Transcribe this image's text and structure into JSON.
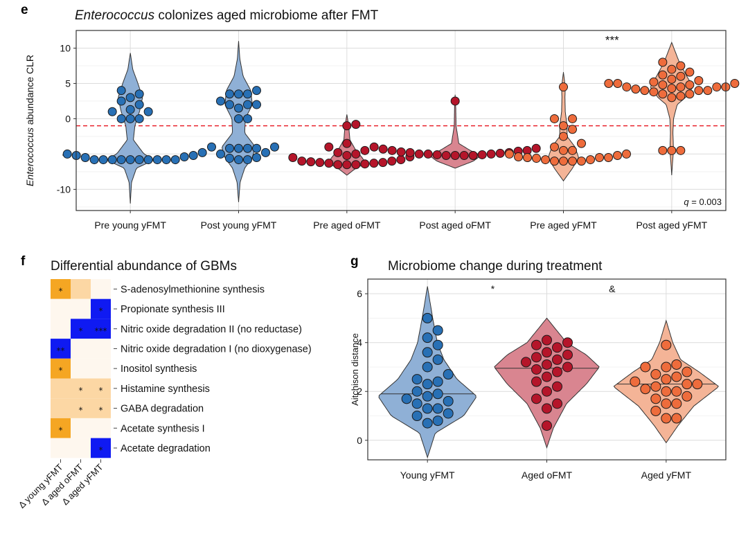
{
  "panels": {
    "e": {
      "letter": "e",
      "title_italic": "Enterococcus",
      "title_rest": " colonizes aged microbiome after FMT"
    },
    "f": {
      "letter": "f",
      "title": "Differential abundance of GBMs"
    },
    "g": {
      "letter": "g",
      "title": "Microbiome change during treatment"
    }
  },
  "chart_data": [
    {
      "id": "e",
      "type": "violin-beeswarm",
      "title": "Enterococcus colonizes aged microbiome after FMT",
      "ylabel_italic": "Enterococcus",
      "ylabel_rest": " abundance CLR",
      "ylim": [
        -13,
        12.5
      ],
      "yticks": [
        -10,
        -5,
        0,
        5,
        10
      ],
      "threshold": -1,
      "annotation": "***",
      "q_label": "q",
      "q_value": " = 0.003",
      "groups": [
        {
          "label": "Pre young yFMT",
          "color": "#2870b5",
          "fill": "#8fb0d6",
          "violin": [
            [
              -12,
              0
            ],
            [
              -9,
              0.04
            ],
            [
              -7,
              0.2
            ],
            [
              -5.8,
              0.8
            ],
            [
              -5,
              0.45
            ],
            [
              -3,
              0.1
            ],
            [
              -1,
              0.15
            ],
            [
              1,
              0.3
            ],
            [
              3,
              0.4
            ],
            [
              5,
              0.25
            ],
            [
              7,
              0.08
            ],
            [
              9.3,
              0
            ]
          ],
          "points": [
            -5.8,
            -5.8,
            -5.8,
            -5.8,
            -5.8,
            -5.8,
            -5.8,
            -5.8,
            -5.8,
            -5.8,
            -5.5,
            -5.4,
            -5.2,
            -5.2,
            -5,
            -4.8,
            0,
            0,
            0,
            1,
            1,
            1.3,
            2,
            2.5,
            3,
            3.5,
            4
          ]
        },
        {
          "label": "Post young yFMT",
          "color": "#2870b5",
          "fill": "#8fb0d6",
          "violin": [
            [
              -11.8,
              0
            ],
            [
              -9,
              0.05
            ],
            [
              -7,
              0.2
            ],
            [
              -5.5,
              0.45
            ],
            [
              -4,
              0.55
            ],
            [
              -2,
              0.2
            ],
            [
              0,
              0.22
            ],
            [
              2,
              0.45
            ],
            [
              4,
              0.4
            ],
            [
              6,
              0.15
            ],
            [
              8.5,
              0.04
            ],
            [
              11,
              0
            ]
          ],
          "points": [
            -5.8,
            -5.8,
            -5.6,
            -5.5,
            -5,
            -4.8,
            -4.2,
            -4.2,
            -4.2,
            -4.2,
            -4,
            -4,
            0,
            0,
            1.5,
            2,
            2,
            2,
            2.5,
            3.5,
            3.5,
            3.5,
            4
          ]
        },
        {
          "label": "Pre aged oFMT",
          "color": "#b5152a",
          "fill": "#d98590",
          "violin": [
            [
              -8,
              0
            ],
            [
              -7,
              0.3
            ],
            [
              -6.3,
              0.62
            ],
            [
              -5.5,
              0.5
            ],
            [
              -4.5,
              0.3
            ],
            [
              -3,
              0.1
            ],
            [
              -1,
              0.06
            ],
            [
              0.6,
              0
            ]
          ],
          "points": [
            -6.5,
            -6.5,
            -6.5,
            -6.4,
            -6.3,
            -6.3,
            -6.2,
            -6.2,
            -6.1,
            -6,
            -6,
            -5.8,
            -5.5,
            -5.4,
            -5.2,
            -5,
            -4.8,
            -4.5,
            -4,
            -3.5,
            -1,
            -0.8
          ]
        },
        {
          "label": "Post aged oFMT",
          "color": "#b5152a",
          "fill": "#d98590",
          "violin": [
            [
              -7,
              0
            ],
            [
              -6,
              0.6
            ],
            [
              -5.2,
              0.85
            ],
            [
              -4.5,
              0.5
            ],
            [
              -3.5,
              0.12
            ],
            [
              -1,
              0.03
            ],
            [
              1.5,
              0.02
            ],
            [
              3.4,
              0
            ]
          ],
          "points": [
            -5.2,
            -5.2,
            -5.2,
            -5.2,
            -5.1,
            -5.1,
            -5,
            -5,
            -5,
            -4.9,
            -4.8,
            -4.8,
            -4.7,
            -4.6,
            -4.5,
            -4.5,
            -4.3,
            -4.2,
            -4,
            2.5
          ]
        },
        {
          "label": "Pre aged yFMT",
          "color": "#ee6c3c",
          "fill": "#f4b497",
          "violin": [
            [
              -8.8,
              0
            ],
            [
              -7,
              0.3
            ],
            [
              -5.5,
              0.5
            ],
            [
              -4,
              0.38
            ],
            [
              -2.5,
              0.12
            ],
            [
              -1,
              0.12
            ],
            [
              1,
              0.06
            ],
            [
              3,
              0.05
            ],
            [
              4.5,
              0.06
            ],
            [
              6.6,
              0
            ]
          ],
          "points": [
            -6,
            -6,
            -6,
            -6,
            -5.8,
            -5.8,
            -5.6,
            -5.5,
            -5.5,
            -5.5,
            -5.4,
            -5.2,
            -5,
            -5,
            -4.5,
            -4.5,
            -4,
            -3.5,
            -2.5,
            -1.5,
            -1,
            0,
            0,
            4.5
          ]
        },
        {
          "label": "Post aged yFMT",
          "color": "#ee6c3c",
          "fill": "#f4b497",
          "violin": [
            [
              -8,
              0
            ],
            [
              -6,
              0.03
            ],
            [
              -4.5,
              0.06
            ],
            [
              -2,
              0.04
            ],
            [
              0,
              0.06
            ],
            [
              2,
              0.18
            ],
            [
              3,
              0.45
            ],
            [
              4.5,
              0.7
            ],
            [
              6,
              0.5
            ],
            [
              8,
              0.25
            ],
            [
              10.8,
              0
            ]
          ],
          "points": [
            -4.5,
            -4.5,
            -4.5,
            3,
            3.2,
            3.5,
            3.5,
            3.8,
            4,
            4,
            4,
            4.2,
            4.3,
            4.5,
            4.5,
            4.5,
            4.5,
            4.8,
            4.8,
            5,
            5,
            5,
            5.2,
            5.4,
            5.6,
            6,
            6.2,
            6.6,
            7,
            7.5,
            8
          ]
        }
      ]
    },
    {
      "id": "f",
      "type": "heatmap",
      "title": "Differential abundance of GBMs",
      "columns": [
        "Δ young yFMT",
        "Δ aged oFMT",
        "Δ aged yFMT"
      ],
      "rows": [
        "S-adenosylmethionine  synthesis",
        "Propionate synthesis III",
        "Nitric oxide degradation II (no reductase)",
        "Nitric oxide degradation I (no dioxygenase)",
        "Inositol synthesis",
        "Histamine synthesis",
        "GABA degradation",
        "Acetate synthesis I",
        "Acetate degradation"
      ],
      "colors": {
        "strong_up": "#f5a623",
        "weak_up": "#fcd7a4",
        "neutral": "#fef7ee",
        "strong_down": "#0f1af2"
      },
      "cells": [
        [
          {
            "v": "strong_up",
            "s": "*"
          },
          {
            "v": "weak_up",
            "s": ""
          },
          {
            "v": "neutral",
            "s": ""
          }
        ],
        [
          {
            "v": "neutral",
            "s": ""
          },
          {
            "v": "neutral",
            "s": ""
          },
          {
            "v": "strong_down",
            "s": "*"
          }
        ],
        [
          {
            "v": "neutral",
            "s": ""
          },
          {
            "v": "strong_down",
            "s": "*"
          },
          {
            "v": "strong_down",
            "s": "***"
          }
        ],
        [
          {
            "v": "strong_down",
            "s": "**"
          },
          {
            "v": "neutral",
            "s": ""
          },
          {
            "v": "neutral",
            "s": ""
          }
        ],
        [
          {
            "v": "strong_up",
            "s": "*"
          },
          {
            "v": "neutral",
            "s": ""
          },
          {
            "v": "neutral",
            "s": ""
          }
        ],
        [
          {
            "v": "weak_up",
            "s": ""
          },
          {
            "v": "weak_up",
            "s": "*"
          },
          {
            "v": "weak_up",
            "s": "*"
          }
        ],
        [
          {
            "v": "weak_up",
            "s": ""
          },
          {
            "v": "weak_up",
            "s": "*"
          },
          {
            "v": "weak_up",
            "s": "*"
          }
        ],
        [
          {
            "v": "strong_up",
            "s": "*"
          },
          {
            "v": "neutral",
            "s": ""
          },
          {
            "v": "neutral",
            "s": ""
          }
        ],
        [
          {
            "v": "neutral",
            "s": ""
          },
          {
            "v": "neutral",
            "s": ""
          },
          {
            "v": "strong_down",
            "s": "*"
          }
        ]
      ]
    },
    {
      "id": "g",
      "type": "violin-beeswarm",
      "title": "Microbiome change during treatment",
      "ylabel": "Aitchison distance",
      "ylim": [
        -0.8,
        6.6
      ],
      "yticks": [
        0,
        2,
        4,
        6
      ],
      "annotations": [
        {
          "text": "*",
          "group": 1
        },
        {
          "text": "&",
          "group": 2
        }
      ],
      "groups": [
        {
          "label": "Young yFMT",
          "color": "#2870b5",
          "fill": "#8fb0d6",
          "median": 1.9,
          "violin": [
            [
              -0.7,
              0
            ],
            [
              0.3,
              0.12
            ],
            [
              1,
              0.55
            ],
            [
              1.8,
              0.75
            ],
            [
              2.5,
              0.45
            ],
            [
              3.3,
              0.25
            ],
            [
              4,
              0.15
            ],
            [
              5,
              0.08
            ],
            [
              6.3,
              0
            ]
          ],
          "points": [
            0.7,
            0.8,
            1,
            1.1,
            1.3,
            1.3,
            1.5,
            1.6,
            1.7,
            1.8,
            1.9,
            2,
            2.3,
            2.4,
            2.5,
            2.7,
            3,
            3.3,
            3.6,
            3.9,
            4.2,
            4.5,
            5
          ]
        },
        {
          "label": "Aged oFMT",
          "color": "#b5152a",
          "fill": "#d98590",
          "median": 2.95,
          "violin": [
            [
              -0.3,
              0
            ],
            [
              0.5,
              0.1
            ],
            [
              1.5,
              0.3
            ],
            [
              2.3,
              0.6
            ],
            [
              3,
              0.8
            ],
            [
              3.5,
              0.6
            ],
            [
              4,
              0.3
            ],
            [
              5,
              0
            ]
          ],
          "points": [
            0.6,
            1.3,
            1.5,
            1.7,
            2,
            2.2,
            2.4,
            2.6,
            2.8,
            2.9,
            3,
            3.1,
            3.2,
            3.3,
            3.4,
            3.5,
            3.6,
            3.8,
            3.9,
            4,
            4.1
          ]
        },
        {
          "label": "Aged yFMT",
          "color": "#ee6c3c",
          "fill": "#f4b497",
          "median": 2.3,
          "violin": [
            [
              -0.1,
              0
            ],
            [
              0.6,
              0.18
            ],
            [
              1.4,
              0.42
            ],
            [
              2.2,
              0.8
            ],
            [
              2.8,
              0.5
            ],
            [
              3.3,
              0.22
            ],
            [
              4,
              0.1
            ],
            [
              4.9,
              0
            ]
          ],
          "points": [
            0.9,
            0.9,
            1.2,
            1.5,
            1.5,
            1.7,
            1.8,
            2,
            2,
            2.1,
            2.2,
            2.3,
            2.3,
            2.4,
            2.5,
            2.6,
            2.7,
            2.8,
            3,
            3,
            3.1,
            3.9
          ]
        }
      ]
    }
  ]
}
